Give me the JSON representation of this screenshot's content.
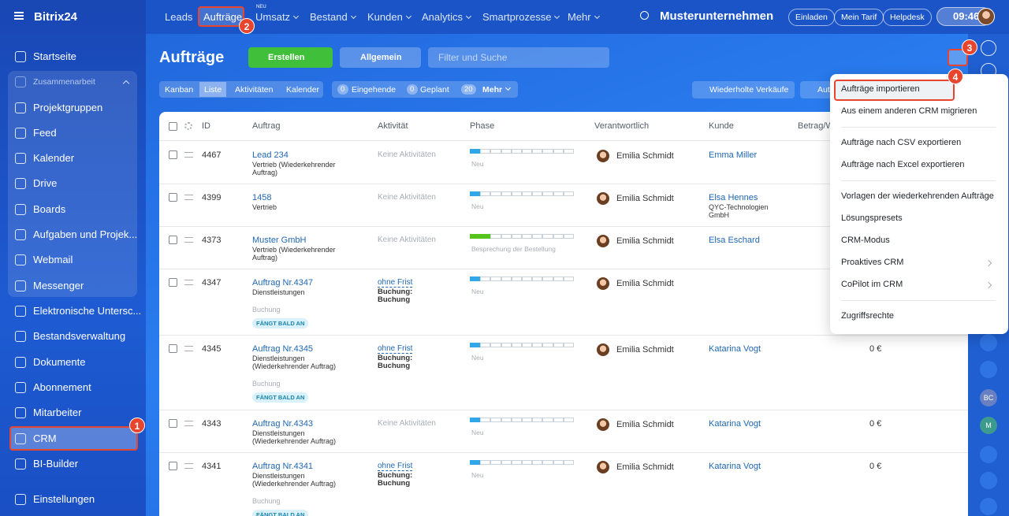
{
  "sidebar": {
    "brand": "Bitrix24",
    "items": [
      "Startseite",
      "Zusammenarbeit",
      "Projektgruppen",
      "Feed",
      "Kalender",
      "Drive",
      "Boards",
      "Aufgaben und Projek...",
      "Webmail",
      "Messenger",
      "Elektronische Untersc...",
      "Bestandsverwaltung",
      "Dokumente",
      "Abonnement",
      "Mitarbeiter",
      "CRM",
      "BI-Builder",
      "Einstellungen"
    ]
  },
  "topnav": {
    "items": [
      "Leads",
      "Aufträge",
      "Umsatz",
      "Bestand",
      "Kunden",
      "Analytics",
      "Smartprozesse",
      "Mehr"
    ],
    "new_badge": "NEU",
    "company": "Musterunternehmen",
    "buttons": [
      "Einladen",
      "Mein Tarif",
      "Helpdesk"
    ],
    "time": "09:46"
  },
  "toolbar": {
    "title": "Aufträge",
    "create": "Erstellen",
    "filter": "Allgemein",
    "search_placeholder": "Filter und Suche"
  },
  "views": {
    "tabs": [
      "Kanban",
      "Liste",
      "Aktivitäten",
      "Kalender"
    ],
    "counters": [
      {
        "count": "0",
        "label": "Eingehende"
      },
      {
        "count": "0",
        "label": "Geplant"
      },
      {
        "count": "20",
        "label": "Mehr"
      }
    ],
    "repeat_sales": "Wiederholte Verkäufe",
    "auto": "Aut"
  },
  "table": {
    "headers": [
      "ID",
      "Auftrag",
      "Aktivität",
      "Phase",
      "Verantwortlich",
      "Kunde",
      "Betrag/W"
    ],
    "rows": [
      {
        "id": "4467",
        "title": "Lead 234",
        "subtitle": "Vertrieb (Wiederkehrender Auftrag)",
        "activity": "Keine Aktivitäten",
        "phase": "Neu",
        "phase_filled": 1,
        "phase_color": "#2fa7e8",
        "responsible": "Emilia Schmidt",
        "client": "Emma Miller"
      },
      {
        "id": "4399",
        "title": "1458",
        "subtitle": "Vertrieb",
        "activity": "Keine Aktivitäten",
        "phase": "Neu",
        "phase_filled": 1,
        "phase_color": "#2fa7e8",
        "responsible": "Emilia Schmidt",
        "client": "Elsa Hennes",
        "client_sub": "QYC-Technologien GmbH"
      },
      {
        "id": "4373",
        "title": "Muster GmbH",
        "subtitle": "Vertrieb (Wiederkehrender Auftrag)",
        "activity": "Keine Aktivitäten",
        "phase": "Besprechung der Bestellung",
        "phase_filled": 2,
        "phase_color": "#55c41c",
        "responsible": "Emilia Schmidt",
        "client": "Elsa Eschard"
      },
      {
        "id": "4347",
        "title": "Auftrag Nr.4347",
        "subtitle": "Dienstleistungen",
        "activity": "ohne Frist",
        "activity_sub": "Buchung: Buchung",
        "phase": "Neu",
        "phase_filled": 1,
        "phase_color": "#2fa7e8",
        "responsible": "Emilia Schmidt",
        "note": "Buchung",
        "badge": "FÄNGT BALD AN"
      },
      {
        "id": "4345",
        "title": "Auftrag Nr.4345",
        "subtitle": "Dienstleistungen (Wiederkehrender Auftrag)",
        "activity": "ohne Frist",
        "activity_sub": "Buchung: Buchung",
        "phase": "Neu",
        "phase_filled": 1,
        "phase_color": "#2fa7e8",
        "responsible": "Emilia Schmidt",
        "client": "Katarina Vogt",
        "amount": "0 €",
        "note": "Buchung",
        "badge": "FÄNGT BALD AN"
      },
      {
        "id": "4343",
        "title": "Auftrag Nr.4343",
        "subtitle": "Dienstleistungen (Wiederkehrender Auftrag)",
        "activity": "Keine Aktivitäten",
        "phase": "Neu",
        "phase_filled": 1,
        "phase_color": "#2fa7e8",
        "responsible": "Emilia Schmidt",
        "client": "Katarina Vogt",
        "amount": "0 €"
      },
      {
        "id": "4341",
        "title": "Auftrag Nr.4341",
        "subtitle": "Dienstleistungen (Wiederkehrender Auftrag)",
        "activity": "ohne Frist",
        "activity_sub": "Buchung: Buchung",
        "phase": "Neu",
        "phase_filled": 1,
        "phase_color": "#2fa7e8",
        "responsible": "Emilia Schmidt",
        "client": "Katarina Vogt",
        "amount": "0 €",
        "note": "Buchung",
        "badge": "FÄNGT BALD AN"
      }
    ]
  },
  "menu": {
    "groups": [
      [
        "Aufträge importieren",
        "Aus einem anderen CRM migrieren"
      ],
      [
        "Aufträge nach CSV exportieren",
        "Aufträge nach Excel exportieren"
      ],
      [
        "Vorlagen der wiederkehrenden Aufträge",
        "Lösungspresets",
        "CRM-Modus",
        "Proaktives CRM",
        "CoPilot im CRM"
      ],
      [
        "Zugriffsrechte"
      ]
    ]
  },
  "rail": {
    "avatars": [
      "BC",
      "M"
    ]
  },
  "callouts": [
    "1",
    "2",
    "3",
    "4"
  ]
}
